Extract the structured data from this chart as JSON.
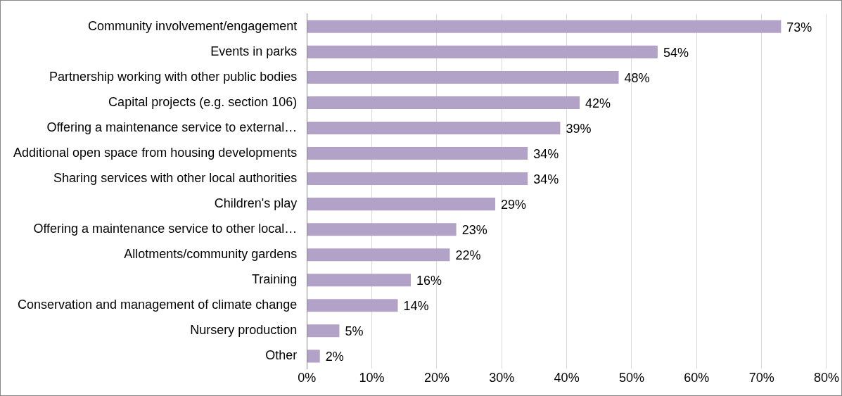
{
  "chart_data": {
    "type": "bar",
    "orientation": "horizontal",
    "categories": [
      "Community involvement/engagement",
      "Events in parks",
      "Partnership working with other public bodies",
      "Capital projects (e.g. section 106)",
      "Offering a maintenance service to external…",
      "Additional open space from housing developments",
      "Sharing services with other local authorities",
      "Children's play",
      "Offering a maintenance service to other local…",
      "Allotments/community gardens",
      "Training",
      "Conservation and management of climate change",
      "Nursery production",
      "Other"
    ],
    "values": [
      73,
      54,
      48,
      42,
      39,
      34,
      34,
      29,
      23,
      22,
      16,
      14,
      5,
      2
    ],
    "value_labels": [
      "73%",
      "54%",
      "48%",
      "42%",
      "39%",
      "34%",
      "34%",
      "29%",
      "23%",
      "22%",
      "16%",
      "14%",
      "5%",
      "2%"
    ],
    "color": "#b3a2c7",
    "xlim": [
      0,
      80
    ],
    "xticks": [
      {
        "value": 0,
        "label": "0%"
      },
      {
        "value": 10,
        "label": "10%"
      },
      {
        "value": 20,
        "label": "20%"
      },
      {
        "value": 30,
        "label": "30%"
      },
      {
        "value": 40,
        "label": "40%"
      },
      {
        "value": 50,
        "label": "50%"
      },
      {
        "value": 60,
        "label": "60%"
      },
      {
        "value": 70,
        "label": "70%"
      },
      {
        "value": 80,
        "label": "80%"
      }
    ],
    "grid": "x",
    "legend": false
  }
}
